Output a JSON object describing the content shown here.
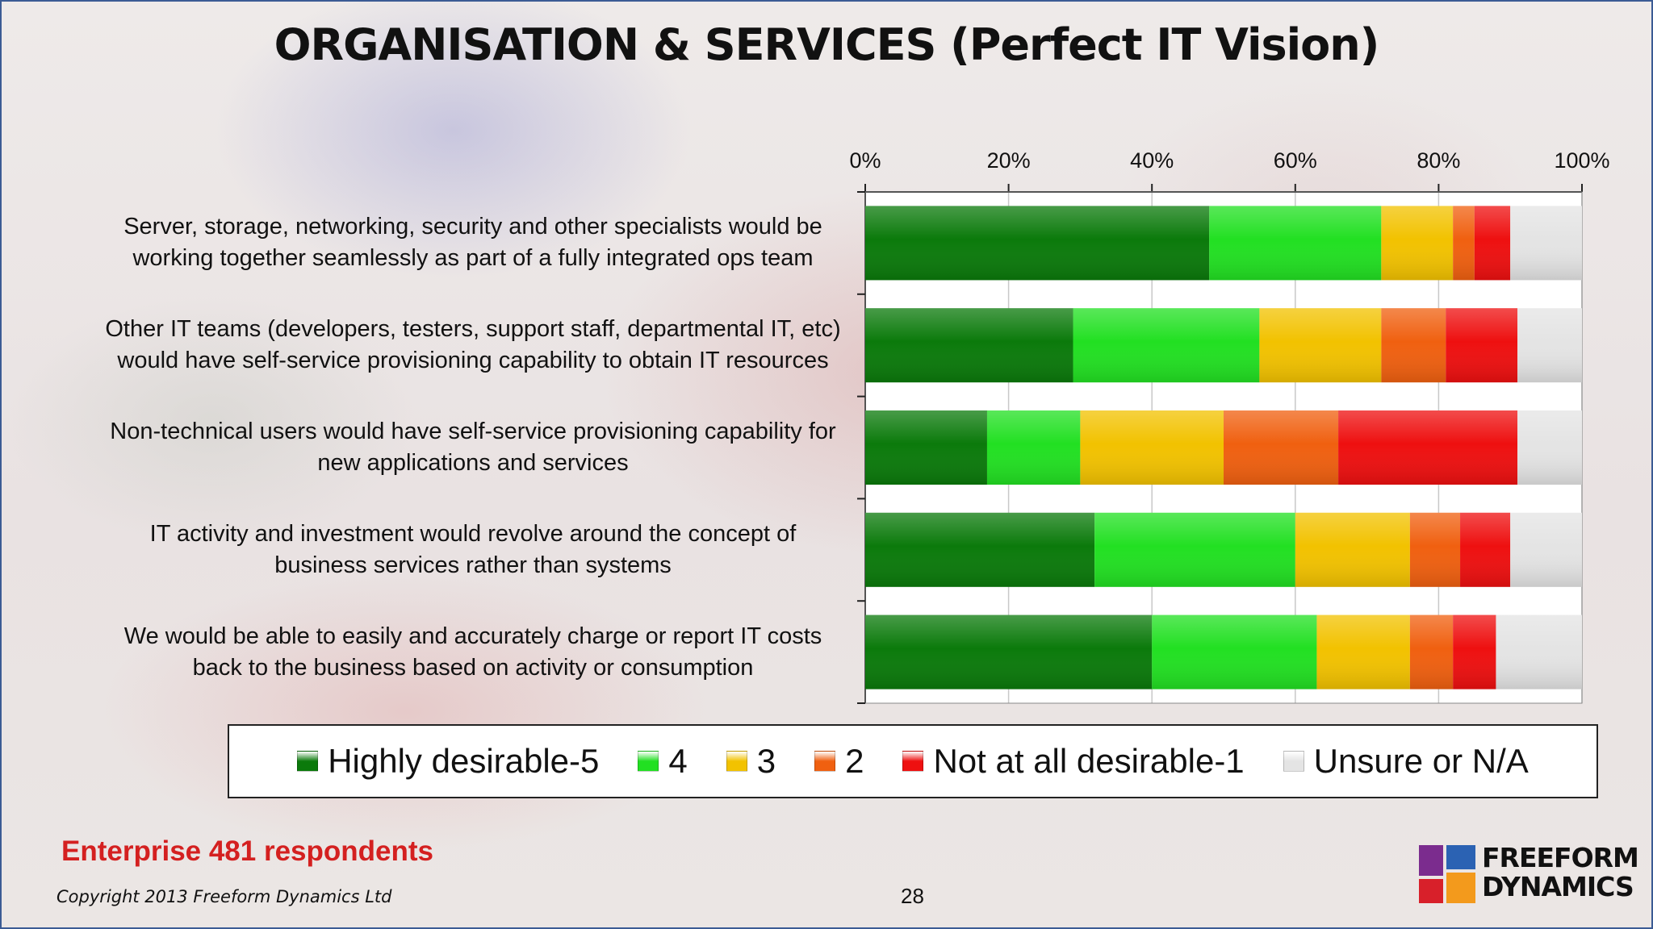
{
  "title": "ORGANISATION & SERVICES (Perfect IT Vision)",
  "footer": {
    "respondents": "Enterprise 481 respondents",
    "copyright": "Copyright 2013 Freeform Dynamics Ltd",
    "page_number": "28",
    "logo_line1": "FREEFORM",
    "logo_line2": "DYNAMICS"
  },
  "colors": {
    "title": "#111111",
    "respondents": "#d42020",
    "border": "#3b5b94"
  },
  "chart_data": {
    "type": "bar",
    "orientation": "horizontal",
    "stacked": true,
    "axis_position": "top",
    "xlim": [
      0,
      100
    ],
    "x_ticks": [
      "0%",
      "20%",
      "40%",
      "60%",
      "80%",
      "100%"
    ],
    "grid": true,
    "legend_position": "bottom",
    "categories": [
      "Server, storage, networking, security and other specialists would be working together seamlessly as part of a fully integrated ops team",
      "Other IT teams (developers, testers, support staff, departmental IT, etc) would have self-service provisioning capability to obtain IT resources",
      "Non-technical users would have self-service provisioning capability for new applications and services",
      "IT activity and investment would revolve around the concept of business services rather than systems",
      "We would be able to easily and accurately charge or report IT costs back to the business based on activity or consumption"
    ],
    "series": [
      {
        "name": "Highly desirable-5",
        "color": "#0b7a0b",
        "values": [
          48,
          29,
          17,
          32,
          40
        ]
      },
      {
        "name": "4",
        "color": "#22e022",
        "values": [
          24,
          26,
          13,
          28,
          23
        ]
      },
      {
        "name": "3",
        "color": "#f2c200",
        "values": [
          10,
          17,
          20,
          16,
          13
        ]
      },
      {
        "name": "2",
        "color": "#f06010",
        "values": [
          3,
          9,
          16,
          7,
          6
        ]
      },
      {
        "name": "Not at all desirable-1",
        "color": "#ee1010",
        "values": [
          5,
          10,
          25,
          7,
          6
        ]
      },
      {
        "name": "Unsure or N/A",
        "color": "#e4e4e4",
        "values": [
          10,
          9,
          9,
          10,
          12
        ]
      }
    ]
  }
}
